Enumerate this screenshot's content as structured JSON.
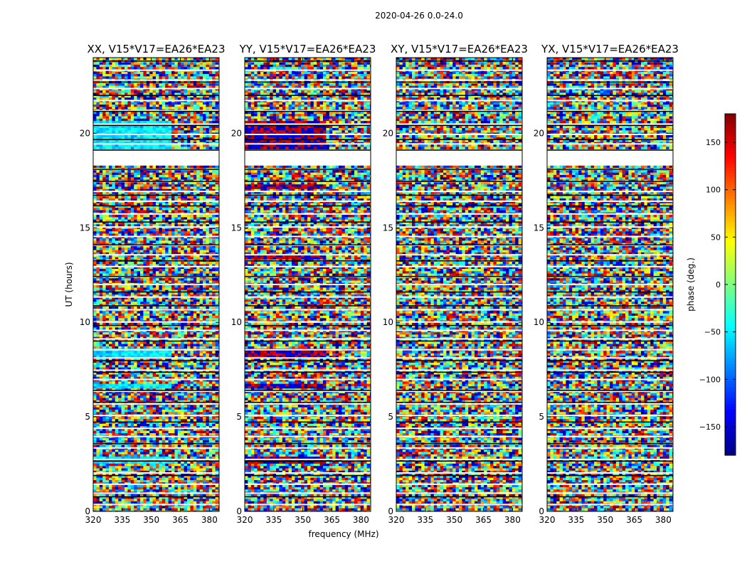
{
  "chart_data": {
    "type": "heatmap",
    "title": "2020-04-26 0.0-24.0",
    "xlabel": "frequency (MHz)",
    "ylabel": "UT (hours)",
    "xlim": [
      320,
      385
    ],
    "ylim": [
      0,
      24
    ],
    "xticks": [
      320,
      335,
      350,
      365,
      380
    ],
    "yticks": [
      0,
      5,
      10,
      15,
      20
    ],
    "panels": [
      {
        "name": "XX, V15*V17=EA26*EA23",
        "tint": "blue"
      },
      {
        "name": "YY, V15*V17=EA26*EA23",
        "tint": "red"
      },
      {
        "name": "XY, V15*V17=EA26*EA23",
        "tint": "none"
      },
      {
        "name": "YX, V15*V17=EA26*EA23",
        "tint": "none"
      }
    ],
    "colorbar": {
      "label": "phase (deg.)",
      "range": [
        -180,
        180
      ],
      "ticks": [
        150,
        100,
        50,
        0,
        -50,
        -100,
        -150
      ],
      "colormap": "jet"
    },
    "flagged_gaps_hours": [
      [
        18.3,
        19.2
      ]
    ],
    "coherent_bands": {
      "xx_blue": [
        [
          19.1,
          20.7
        ],
        [
          8.2,
          8.7
        ],
        [
          6.5,
          6.8
        ],
        [
          2.6,
          3.0
        ]
      ],
      "yy_red": [
        [
          19.1,
          20.7
        ],
        [
          13.4,
          13.6
        ],
        [
          8.2,
          8.7
        ],
        [
          6.5,
          6.8
        ],
        [
          2.6,
          3.0
        ],
        [
          17.1,
          17.4
        ]
      ]
    }
  }
}
